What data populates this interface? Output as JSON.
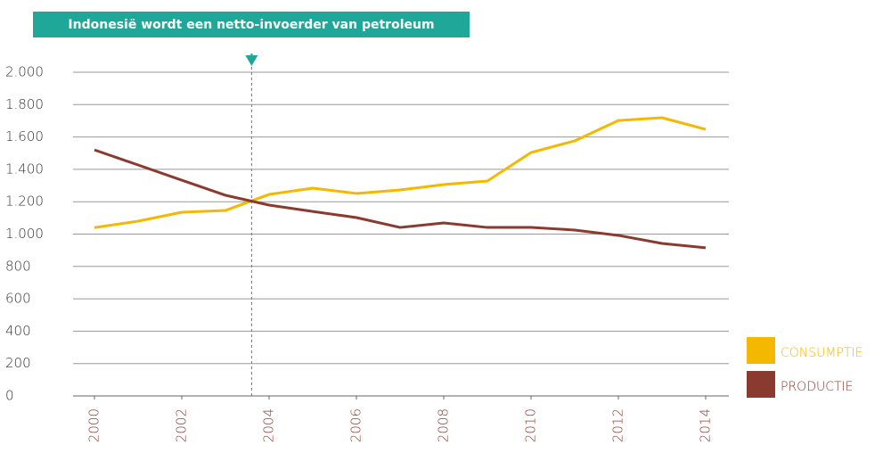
{
  "chart_data": {
    "type": "line",
    "annotation": {
      "text": "Indonesië wordt een netto-invoerder van petroleum",
      "x": 2003.6
    },
    "x": [
      2000,
      2001,
      2002,
      2003,
      2004,
      2005,
      2006,
      2007,
      2008,
      2009,
      2010,
      2011,
      2012,
      2013,
      2014
    ],
    "series": [
      {
        "name": "CONSUMPTIE",
        "color": "#f5b800",
        "values": [
          1040,
          1080,
          1135,
          1146,
          1245,
          1284,
          1251,
          1273,
          1306,
          1328,
          1504,
          1576,
          1702,
          1719,
          1647
        ]
      },
      {
        "name": "PRODUCTIE",
        "color": "#8b3a2f",
        "values": [
          1520,
          1427,
          1333,
          1240,
          1179,
          1140,
          1102,
          1041,
          1069,
          1041,
          1041,
          1025,
          992,
          942,
          915
        ]
      }
    ],
    "xlim": [
      2000,
      2014
    ],
    "xticks": [
      2000,
      2002,
      2004,
      2006,
      2008,
      2010,
      2012,
      2014
    ],
    "ylim": [
      0,
      2000
    ],
    "yticks": [
      0,
      200,
      400,
      600,
      800,
      {
        "value": 1000,
        "label": "1.000"
      },
      {
        "value": 1200,
        "label": "1.200"
      },
      {
        "value": 1400,
        "label": "1.400"
      },
      {
        "value": 1600,
        "label": "1.600"
      },
      {
        "value": 1800,
        "label": "1.800"
      },
      {
        "value": 2000,
        "label": "2.000"
      }
    ],
    "grid": true,
    "legend": "right"
  }
}
